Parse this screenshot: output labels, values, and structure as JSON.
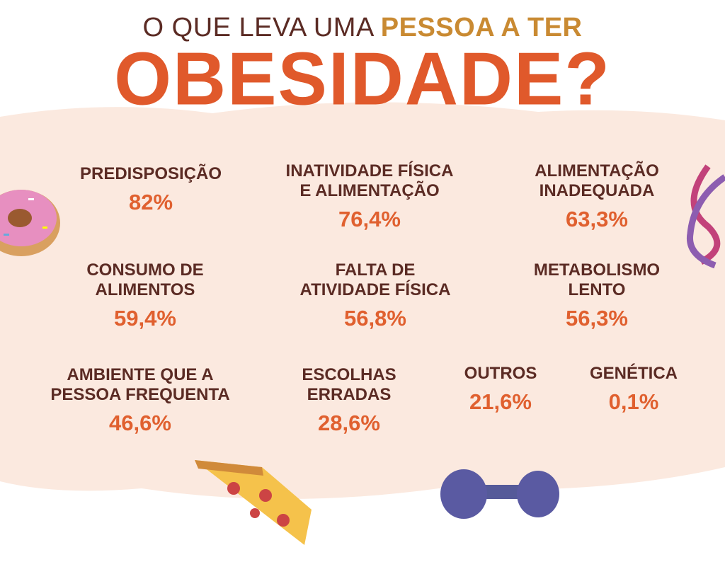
{
  "header": {
    "title_start": "O QUE LEVA UMA",
    "title_highlight": "PESSOA A TER",
    "title_main": "OBESIDADE?"
  },
  "items": [
    {
      "label": [
        "PREDISPOSIÇÃO"
      ],
      "value": "82%"
    },
    {
      "label": [
        "INATIVIDADE FÍSICA",
        "E ALIMENTAÇÃO"
      ],
      "value": "76,4%"
    },
    {
      "label": [
        "ALIMENTAÇÃO",
        "INADEQUADA"
      ],
      "value": "63,3%"
    },
    {
      "label": [
        "CONSUMO DE",
        "ALIMENTOS"
      ],
      "value": "59,4%"
    },
    {
      "label": [
        "FALTA DE",
        "ATIVIDADE FÍSICA"
      ],
      "value": "56,8%"
    },
    {
      "label": [
        "METABOLISMO",
        "LENTO"
      ],
      "value": "56,3%"
    },
    {
      "label": [
        "AMBIENTE QUE A",
        "PESSOA FREQUENTA"
      ],
      "value": "46,6%"
    },
    {
      "label": [
        "ESCOLHAS",
        "ERRADAS"
      ],
      "value": "28,6%"
    },
    {
      "label": [
        "OUTROS"
      ],
      "value": "21,6%"
    },
    {
      "label": [
        "GENÉTICA"
      ],
      "value": "0,1%"
    }
  ]
}
